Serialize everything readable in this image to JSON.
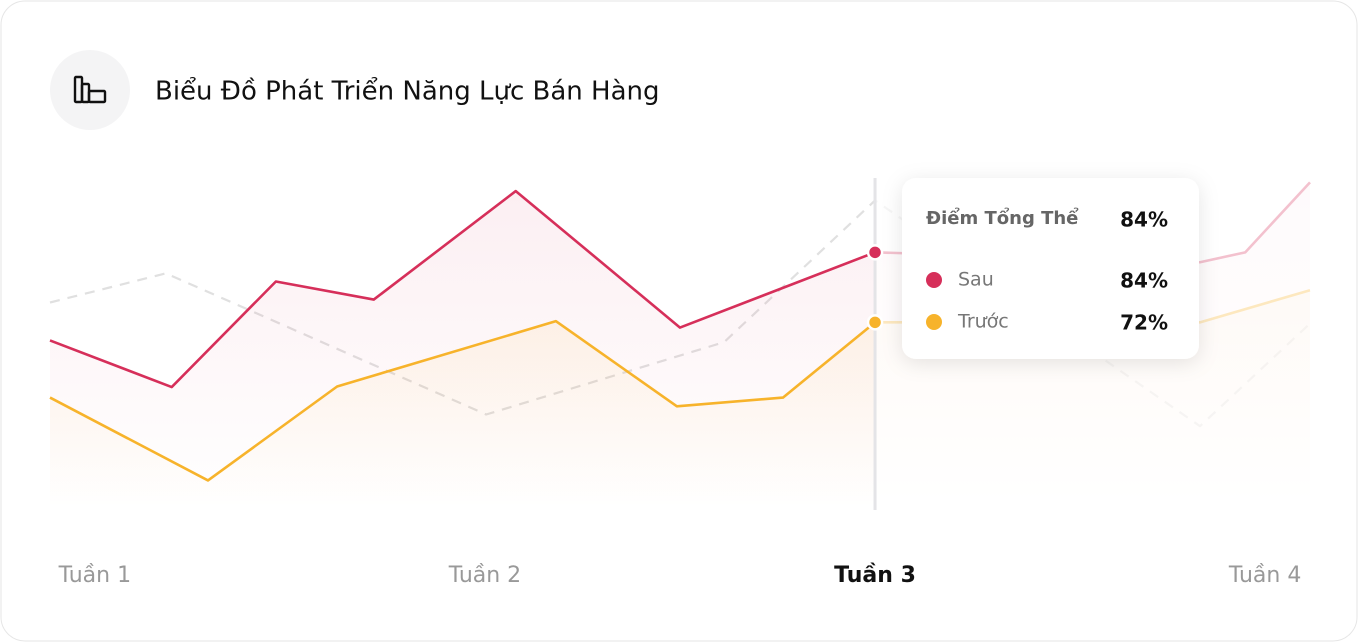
{
  "chart_data": {
    "type": "line",
    "title": "Biểu Đồ Phát Triển Năng Lực Bán Hàng",
    "xlim": [
      0.885,
      4.115
    ],
    "ylim": [
      40,
      100
    ],
    "xticks": [
      {
        "value": 1,
        "label": "Tuần 1"
      },
      {
        "value": 2,
        "label": "Tuần 2"
      },
      {
        "value": 3,
        "label": "Tuần 3"
      },
      {
        "value": 4,
        "label": "Tuần 4"
      }
    ],
    "series": [
      {
        "name": "Sau",
        "color": "#d62f5a",
        "x": [
          0.885,
          1.197,
          1.464,
          1.715,
          2.079,
          2.5,
          3.0,
          3.833,
          3.949,
          4.115
        ],
        "values": [
          68.9,
          60.9,
          79.0,
          75.9,
          94.5,
          71.1,
          84,
          82.3,
          84,
          96.0
        ]
      },
      {
        "name": "Trước",
        "color": "#f7b32b",
        "x": [
          0.885,
          1.29,
          1.621,
          2.182,
          2.492,
          2.764,
          3.0,
          3.833,
          4.115
        ],
        "values": [
          59.1,
          44.9,
          61.0,
          72.2,
          57.6,
          59.1,
          72,
          72.0,
          77.5
        ]
      },
      {
        "color": "#e0e0e0",
        "x": [
          0.885,
          1.182,
          2.003,
          2.613,
          3.0,
          3.833,
          4.115
        ],
        "values": [
          75.4,
          80.4,
          56.2,
          68.6,
          92.9,
          54.2,
          71.8
        ]
      }
    ],
    "tooltip": {
      "title": "Điểm Tổng Thể",
      "total_label": "84%",
      "labels": [
        "84%",
        "72%"
      ]
    }
  }
}
